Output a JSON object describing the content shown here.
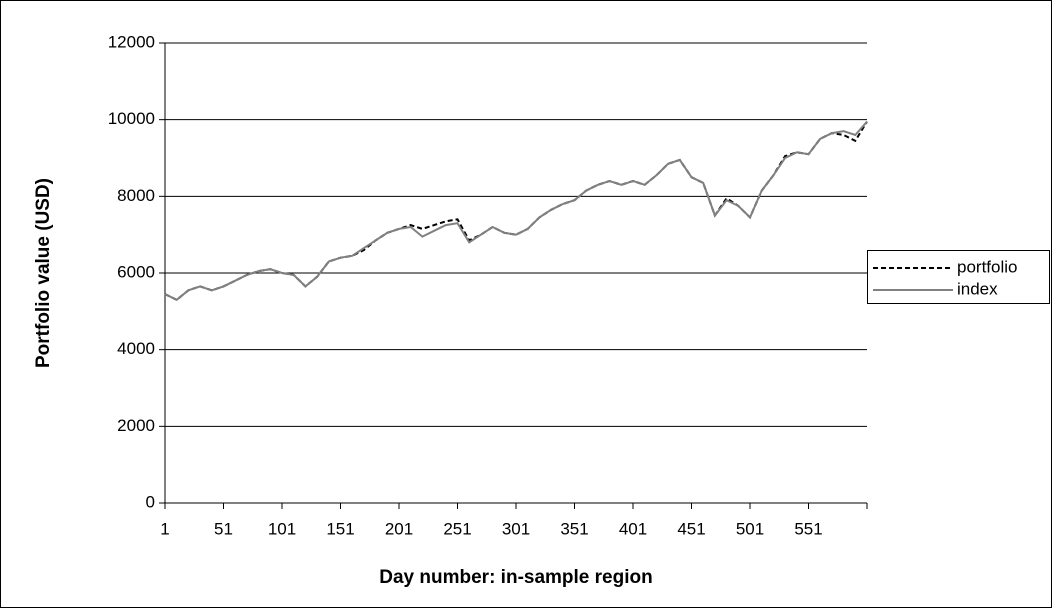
{
  "chart_data": {
    "type": "line",
    "xlabel": "Day number: in-sample region",
    "ylabel": "Portfolio value (USD)",
    "x": [
      1,
      11,
      21,
      31,
      41,
      51,
      61,
      71,
      81,
      91,
      101,
      111,
      121,
      131,
      141,
      151,
      161,
      171,
      181,
      191,
      201,
      211,
      221,
      231,
      241,
      251,
      261,
      271,
      281,
      291,
      301,
      311,
      321,
      331,
      341,
      351,
      361,
      371,
      381,
      391,
      401,
      411,
      421,
      431,
      441,
      451,
      461,
      471,
      481,
      491,
      501,
      511,
      521,
      531,
      541,
      551,
      561,
      571,
      581,
      591,
      601
    ],
    "series": [
      {
        "name": "portfolio",
        "color": "#000000",
        "dashed": true,
        "values": [
          5450,
          5300,
          5550,
          5650,
          5550,
          5650,
          5800,
          5950,
          6050,
          6100,
          6000,
          5950,
          5650,
          5900,
          6300,
          6400,
          6450,
          6600,
          6850,
          7050,
          7150,
          7250,
          7150,
          7250,
          7350,
          7400,
          6850,
          7000,
          7200,
          7050,
          7000,
          7150,
          7450,
          7650,
          7800,
          7900,
          8150,
          8300,
          8400,
          8300,
          8400,
          8300,
          8550,
          8850,
          8950,
          8500,
          8350,
          7500,
          7950,
          7750,
          7450,
          8150,
          8550,
          9050,
          9150,
          9100,
          9500,
          9650,
          9600,
          9450,
          9950
        ]
      },
      {
        "name": "index",
        "color": "#808080",
        "dashed": false,
        "values": [
          5450,
          5300,
          5550,
          5650,
          5550,
          5650,
          5800,
          5950,
          6050,
          6100,
          6000,
          5950,
          5650,
          5900,
          6300,
          6400,
          6450,
          6650,
          6850,
          7050,
          7150,
          7200,
          6950,
          7100,
          7250,
          7300,
          6800,
          7000,
          7200,
          7050,
          7000,
          7150,
          7450,
          7650,
          7800,
          7900,
          8150,
          8300,
          8400,
          8300,
          8400,
          8300,
          8550,
          8850,
          8950,
          8500,
          8350,
          7500,
          7900,
          7750,
          7450,
          8150,
          8550,
          9000,
          9150,
          9100,
          9500,
          9650,
          9700,
          9600,
          9950
        ]
      }
    ],
    "xlim": [
      1,
      601
    ],
    "xticks": [
      1,
      51,
      101,
      151,
      201,
      251,
      301,
      351,
      401,
      451,
      501,
      551
    ],
    "ylim": [
      0,
      12000
    ],
    "yticks": [
      0,
      2000,
      4000,
      6000,
      8000,
      10000,
      12000
    ],
    "grid": true,
    "legend": "right"
  }
}
